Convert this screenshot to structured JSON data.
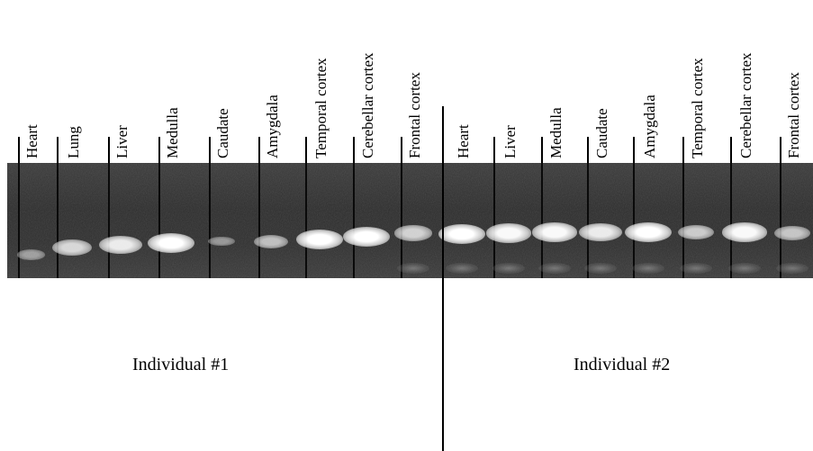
{
  "lanes": [
    {
      "label": "Heart",
      "intensity": 0.25
    },
    {
      "label": "Lung",
      "intensity": 0.7
    },
    {
      "label": "Liver",
      "intensity": 0.85
    },
    {
      "label": "Medulla",
      "intensity": 1.0
    },
    {
      "label": "Caudate",
      "intensity": 0.2
    },
    {
      "label": "Amygdala",
      "intensity": 0.5
    },
    {
      "label": "Temporal cortex",
      "intensity": 1.0
    },
    {
      "label": "Cerebellar cortex",
      "intensity": 1.0
    },
    {
      "label": "Frontal cortex",
      "intensity": 0.65
    },
    {
      "label": "Heart",
      "intensity": 1.0
    },
    {
      "label": "Liver",
      "intensity": 0.95
    },
    {
      "label": "Medulla",
      "intensity": 0.95
    },
    {
      "label": "Caudate",
      "intensity": 0.85
    },
    {
      "label": "Amygdala",
      "intensity": 1.0
    },
    {
      "label": "Temporal cortex",
      "intensity": 0.6
    },
    {
      "label": "Cerebellar cortex",
      "intensity": 0.95
    },
    {
      "label": "Frontal cortex",
      "intensity": 0.55
    }
  ],
  "groups": {
    "individual1": "Individual #1",
    "individual2": "Individual #2"
  }
}
